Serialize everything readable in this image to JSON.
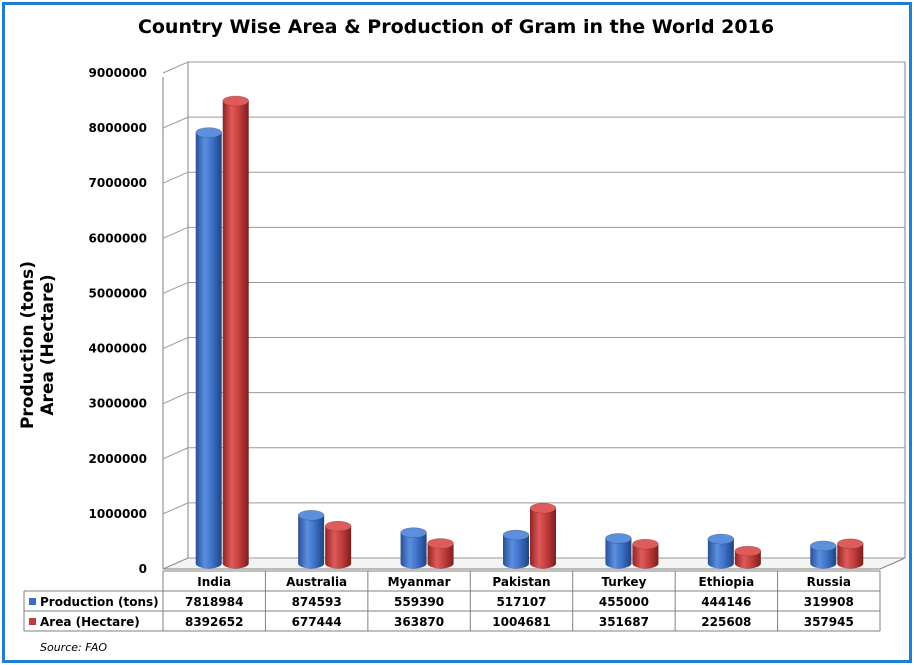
{
  "chart_data": {
    "type": "bar",
    "title": "Country Wise Area & Production of Gram in the World 2016",
    "ylabel_line1": "Production (tons)",
    "ylabel_line2": "Area (Hectare)",
    "categories": [
      "India",
      "Australia",
      "Myanmar",
      "Pakistan",
      "Turkey",
      "Ethiopia",
      "Russia"
    ],
    "series": [
      {
        "name": "Production (tons)",
        "values": [
          7818984,
          874593,
          559390,
          517107,
          455000,
          444146,
          319908
        ],
        "color": "#3a6fc4"
      },
      {
        "name": "Area (Hectare)",
        "values": [
          8392652,
          677444,
          363870,
          1004681,
          351687,
          225608,
          357945
        ],
        "color": "#c23b3b"
      }
    ],
    "ylim": [
      0,
      9000000
    ],
    "yticks": [
      "0",
      "1000000",
      "2000000",
      "3000000",
      "4000000",
      "5000000",
      "6000000",
      "7000000",
      "8000000",
      "9000000"
    ],
    "grid": true,
    "legend": "data-table"
  },
  "source": "Source: FAO"
}
